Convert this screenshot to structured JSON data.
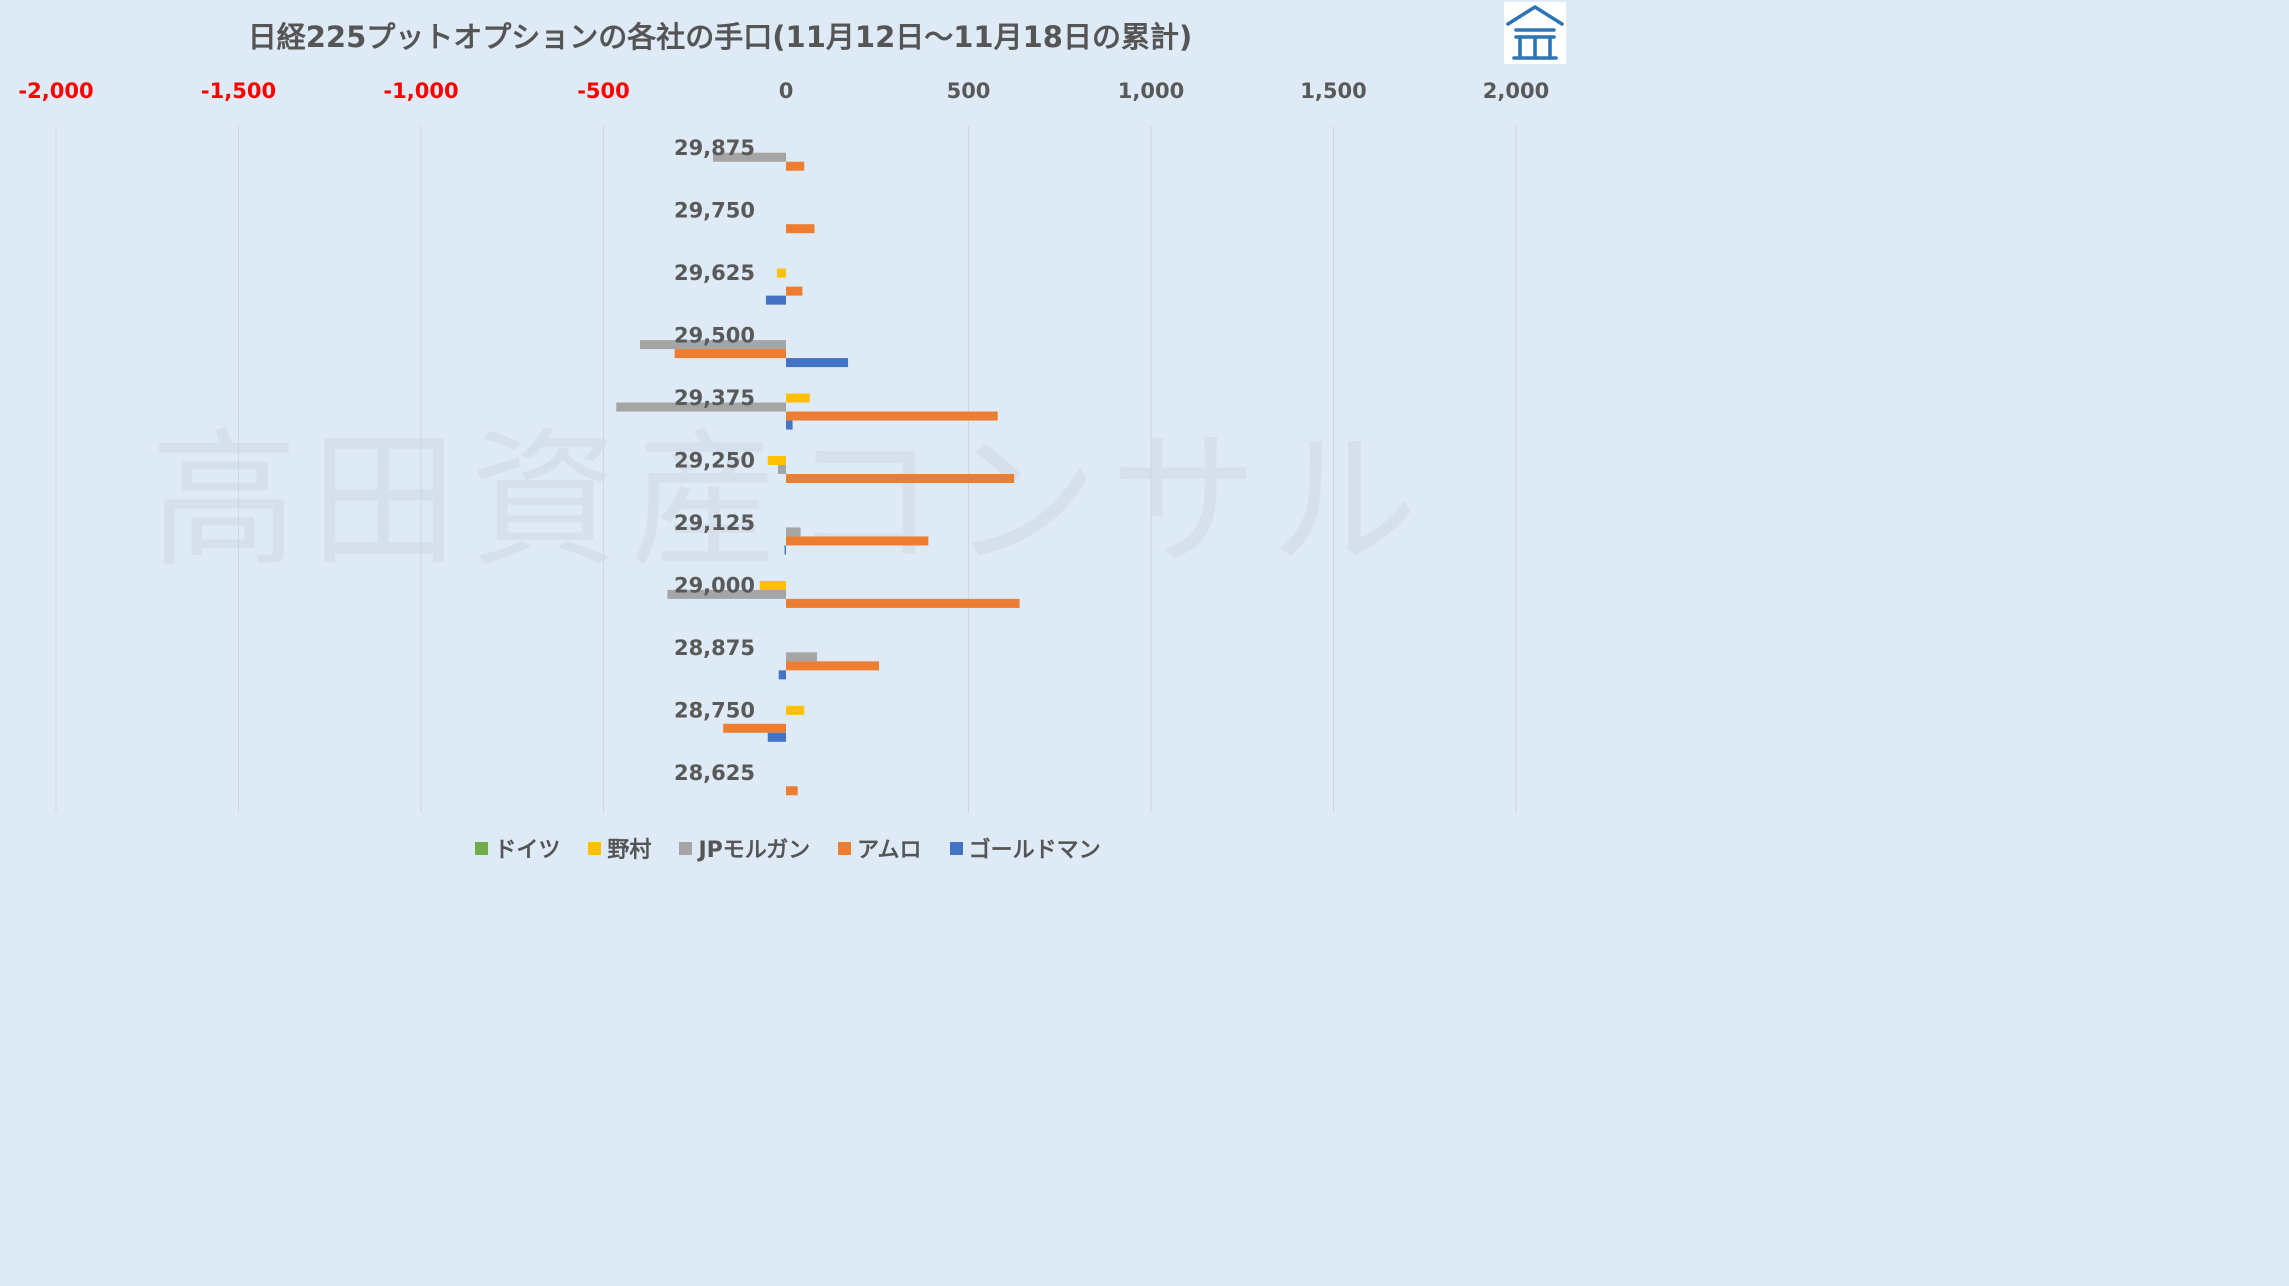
{
  "chart_data": {
    "type": "bar",
    "orientation": "horizontal",
    "title": "日経225プットオプションの各社の手口(11月12日～11月18日の累計)",
    "categories": [
      "29,875",
      "29,750",
      "29,625",
      "29,500",
      "29,375",
      "29,250",
      "29,125",
      "29,000",
      "28,875",
      "28,750",
      "28,625"
    ],
    "series": [
      {
        "name": "ドイツ",
        "color": "#70ad47",
        "values": [
          0,
          0,
          0,
          0,
          0,
          0,
          0,
          0,
          0,
          0,
          0
        ]
      },
      {
        "name": "野村",
        "color": "#ffc000",
        "values": [
          0,
          0,
          -25,
          0,
          65,
          -50,
          0,
          -72,
          0,
          50,
          0
        ]
      },
      {
        "name": "JPモルガン",
        "color": "#a5a5a5",
        "values": [
          -200,
          0,
          0,
          -400,
          -465,
          -22,
          40,
          -325,
          85,
          0,
          0
        ]
      },
      {
        "name": "アムロ",
        "color": "#ed7d31",
        "values": [
          50,
          78,
          45,
          -305,
          580,
          625,
          390,
          640,
          255,
          -172,
          32
        ]
      },
      {
        "name": "ゴールドマン",
        "color": "#4472c4",
        "values": [
          0,
          0,
          -55,
          170,
          18,
          0,
          -4,
          0,
          -20,
          -50,
          0
        ]
      }
    ],
    "x_axis": {
      "range": [
        -2000,
        2000
      ],
      "ticks": [
        -2000,
        -1500,
        -1000,
        -500,
        0,
        500,
        1000,
        1500,
        2000
      ],
      "tick_labels": [
        "-2,000",
        "-1,500",
        "-1,000",
        "-500",
        "0",
        "500",
        "1,000",
        "1,500",
        "2,000"
      ],
      "position": "top",
      "negative_tick_color": "#ff0000",
      "positive_tick_color": "#595959"
    },
    "grid": "vertical",
    "legend": "bottom"
  },
  "watermark": "高田資産コンサル",
  "colors": {
    "background": "#deeaf6",
    "logo": "#2e75b6"
  }
}
